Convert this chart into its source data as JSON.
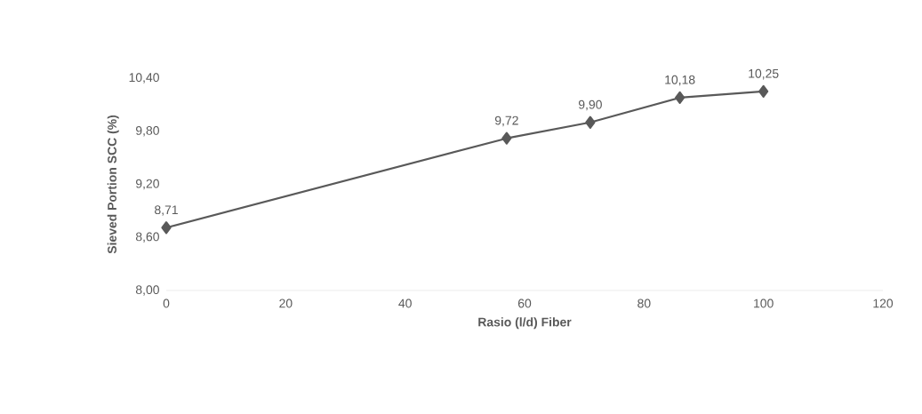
{
  "chart_data": {
    "type": "line",
    "xlabel": "Rasio (l/d) Fiber",
    "ylabel": "Sieved Portion SCC (%)",
    "x": [
      0,
      57,
      71,
      86,
      100
    ],
    "values": [
      8.71,
      9.72,
      9.9,
      10.18,
      10.25
    ],
    "value_labels": [
      "8,71",
      "9,72",
      "9,90",
      "10,18",
      "10,25"
    ],
    "color": "#595959",
    "marker": "diamond",
    "xlim": [
      0,
      120
    ],
    "xticks": [
      0,
      20,
      40,
      60,
      80,
      100,
      120
    ],
    "ylim": [
      8,
      10.4
    ],
    "yticks": [
      {
        "value": 8.0,
        "label": "8,00"
      },
      {
        "value": 8.6,
        "label": "8,60"
      },
      {
        "value": 9.2,
        "label": "9,20"
      },
      {
        "value": 9.8,
        "label": "9,80"
      },
      {
        "value": 10.4,
        "label": "10,40"
      }
    ]
  }
}
